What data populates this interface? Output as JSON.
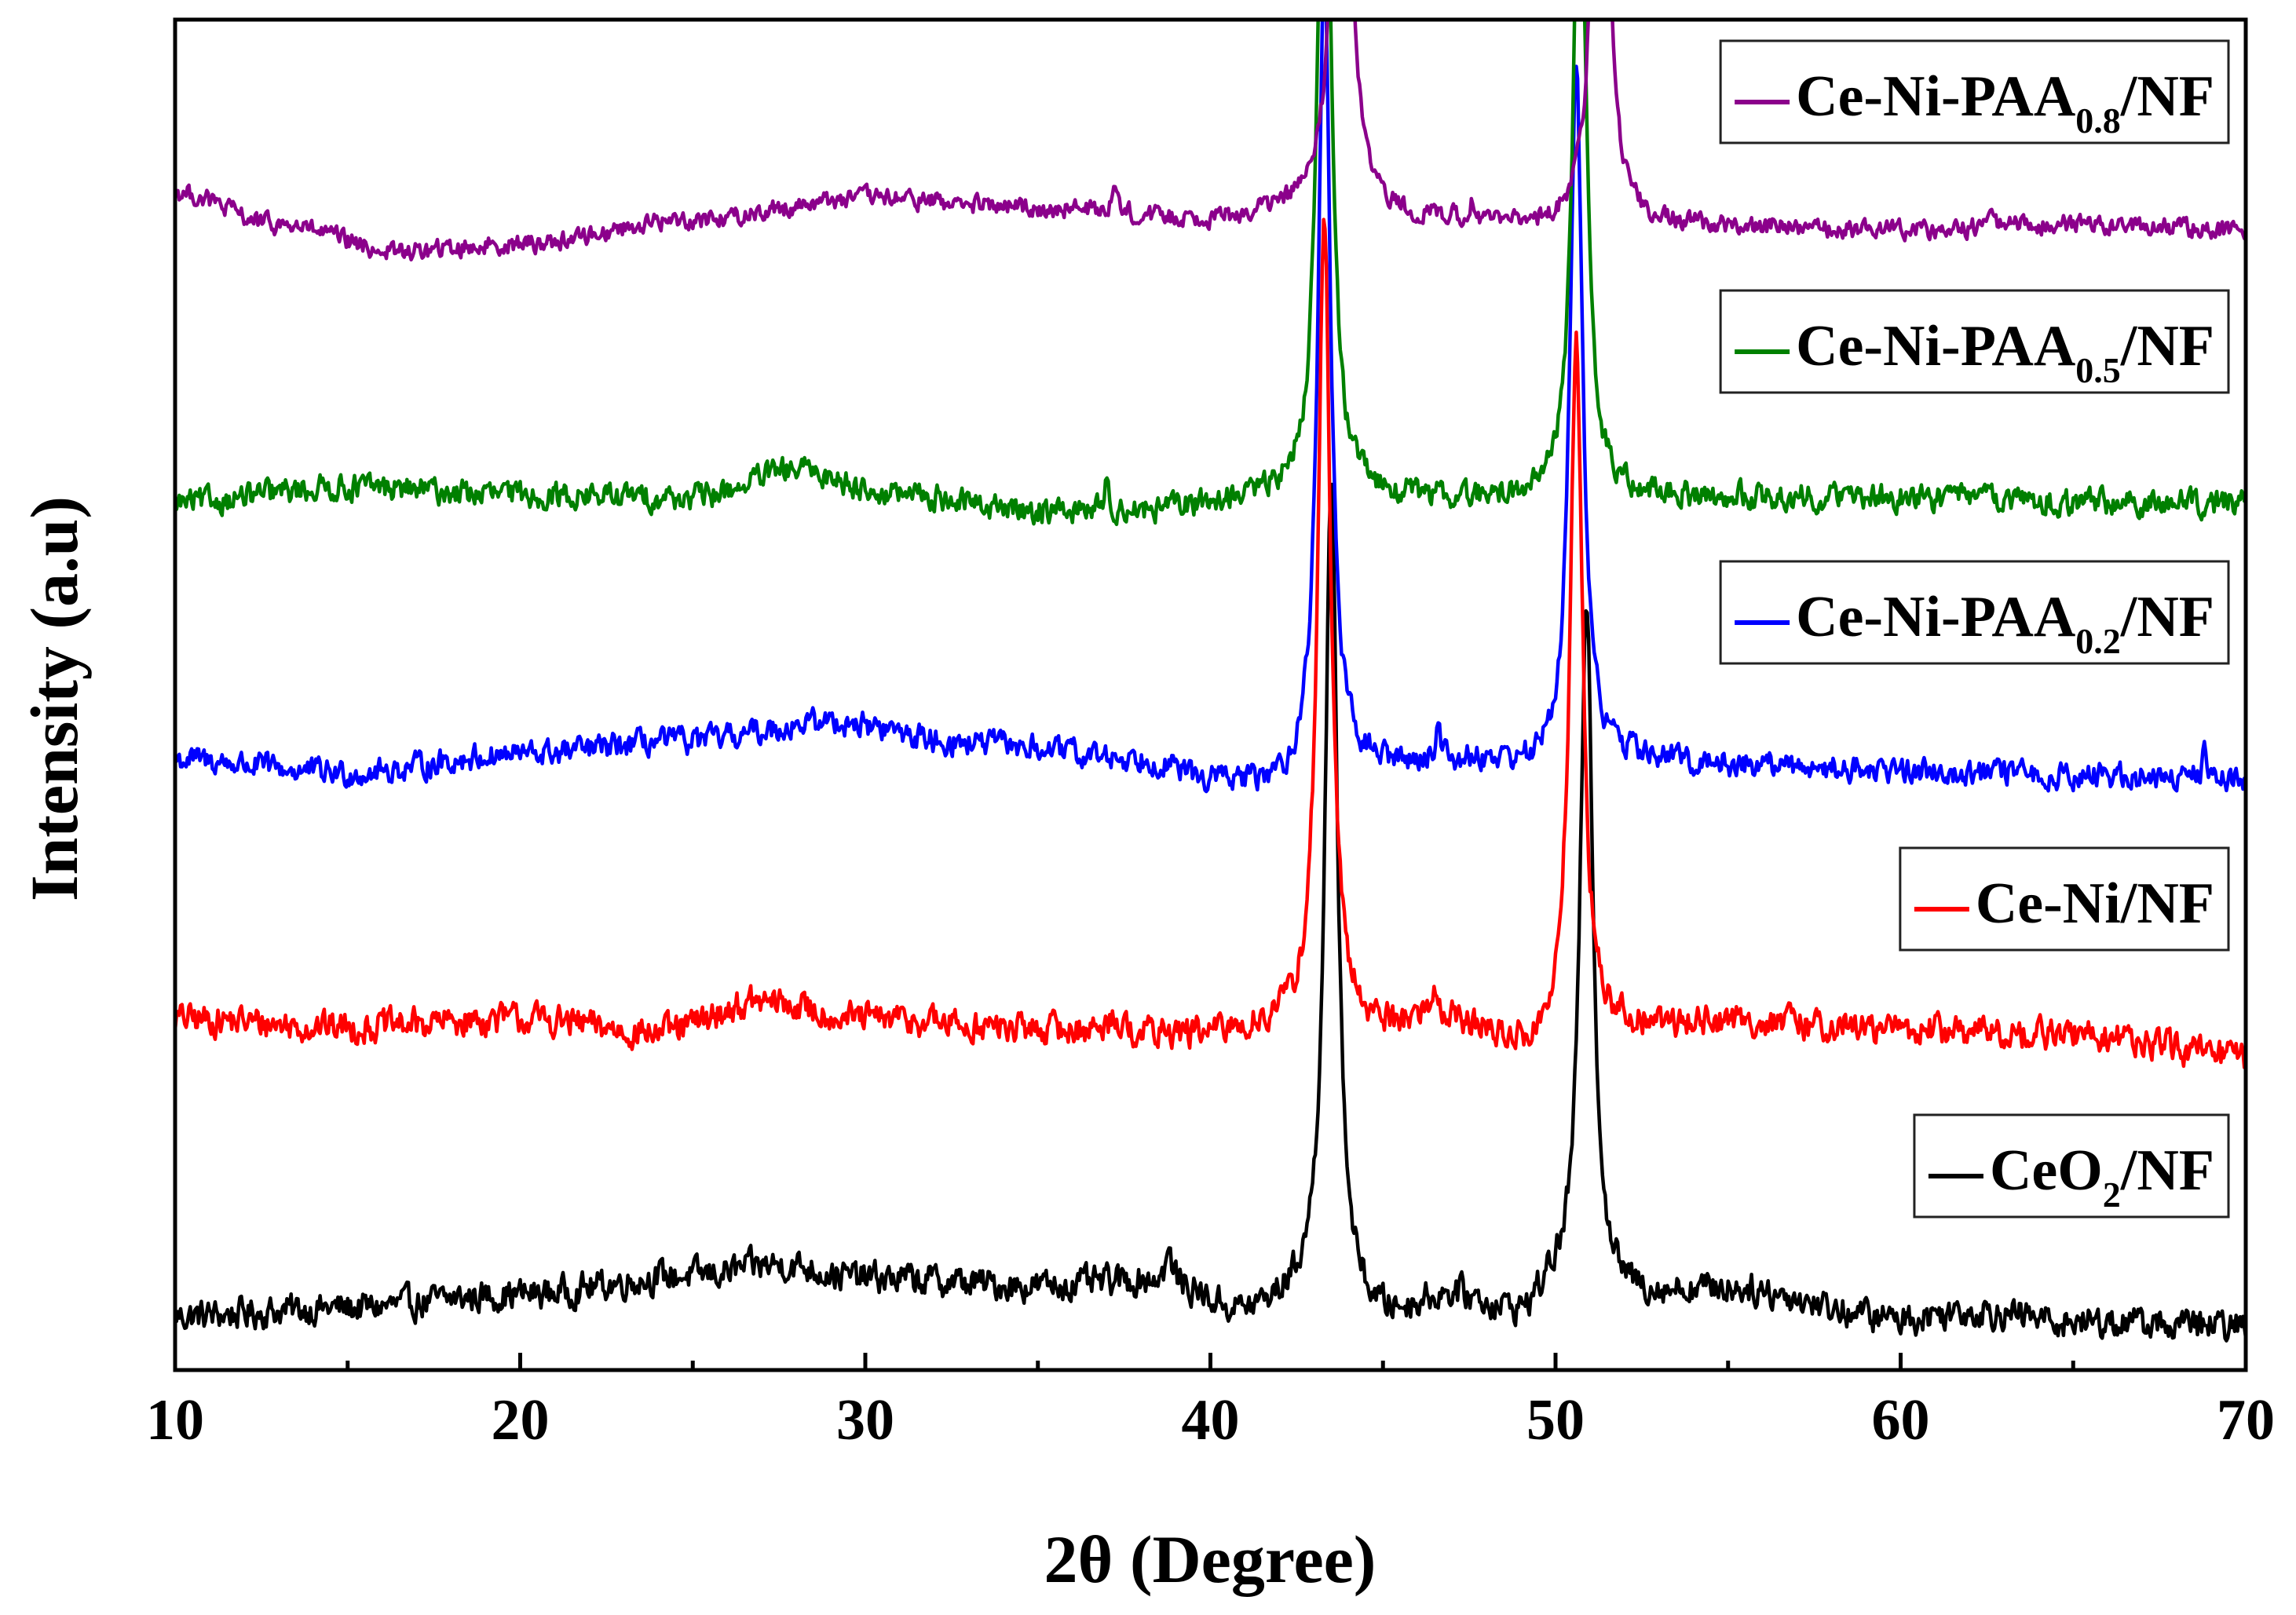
{
  "chart_data": {
    "type": "line",
    "title": "",
    "xlabel": "2θ (Degree)",
    "ylabel": "Intensity (a.u)",
    "xlim": [
      10,
      70
    ],
    "xticks": [
      10,
      20,
      30,
      40,
      50,
      60,
      70
    ],
    "yticks": [],
    "grid": false,
    "legend_placement": "right, one box per trace",
    "series": [
      {
        "name": "CeO2/NF",
        "legend_main": "CeO",
        "legend_sub": "2",
        "legend_tail": "/NF",
        "color": "#000000",
        "baseline_offset": 0.0,
        "noise": 0.9,
        "background": [
          [
            10,
            0.5
          ],
          [
            15,
            0.8
          ],
          [
            20,
            1.3
          ],
          [
            25,
            2.0
          ],
          [
            27.5,
            2.4
          ],
          [
            30,
            1.9
          ],
          [
            35,
            1.6
          ],
          [
            38.5,
            1.8
          ],
          [
            41,
            0.6
          ],
          [
            42.8,
            1.2
          ],
          [
            45,
            0.4
          ],
          [
            47,
            1.2
          ],
          [
            49,
            0.5
          ],
          [
            50,
            1.4
          ],
          [
            52,
            1.2
          ],
          [
            55,
            1.5
          ],
          [
            60,
            0.4
          ],
          [
            62,
            0.7
          ],
          [
            65,
            0.3
          ],
          [
            70,
            0.1
          ]
        ],
        "peaks": [
          {
            "x": 43.5,
            "height": 30,
            "width": 0.22
          },
          {
            "x": 50.9,
            "height": 26,
            "width": 0.22
          },
          {
            "x": 38.8,
            "height": 0.9,
            "width": 0.12
          }
        ]
      },
      {
        "name": "Ce-Ni/NF",
        "legend_main": "Ce-Ni/NF",
        "legend_sub": "",
        "legend_tail": "",
        "color": "#ff0000",
        "baseline_offset": 10.5,
        "noise": 0.9,
        "background": [
          [
            10,
            1.0
          ],
          [
            15,
            0.7
          ],
          [
            20,
            1.0
          ],
          [
            24,
            0.5
          ],
          [
            27,
            1.6
          ],
          [
            30,
            1.0
          ],
          [
            35,
            0.6
          ],
          [
            40,
            0.4
          ],
          [
            42,
            0.7
          ],
          [
            45,
            0.6
          ],
          [
            46.5,
            1.0
          ],
          [
            49.5,
            -0.2
          ],
          [
            52,
            0.6
          ],
          [
            55,
            0.9
          ],
          [
            60,
            0.6
          ],
          [
            65,
            0.4
          ],
          [
            70,
            -0.4
          ]
        ],
        "peaks": [
          {
            "x": 43.3,
            "height": 30,
            "width": 0.22
          },
          {
            "x": 50.6,
            "height": 26,
            "width": 0.22
          },
          {
            "x": 46.5,
            "height": 0.9,
            "width": 0.12
          },
          {
            "x": 37.2,
            "height": 0.8,
            "width": 0.12
          }
        ]
      },
      {
        "name": "Ce-Ni-PAA0.2/NF",
        "legend_main": "Ce-Ni-PAA",
        "legend_sub": "0.2",
        "legend_tail": "/NF",
        "color": "#0000ff",
        "baseline_offset": 20.5,
        "noise": 0.75,
        "background": [
          [
            10,
            0.6
          ],
          [
            15,
            0.1
          ],
          [
            20,
            0.8
          ],
          [
            25,
            1.3
          ],
          [
            29,
            2.0
          ],
          [
            33,
            1.2
          ],
          [
            38,
            0.6
          ],
          [
            40,
            -0.2
          ],
          [
            42,
            -0.5
          ],
          [
            45,
            0.3
          ],
          [
            48,
            0.5
          ],
          [
            49.5,
            0.2
          ],
          [
            52,
            0.6
          ],
          [
            55,
            0.4
          ],
          [
            60,
            0.2
          ],
          [
            65,
            0.0
          ],
          [
            70,
            -0.1
          ]
        ],
        "peaks": [
          {
            "x": 43.3,
            "height": 30,
            "width": 0.22
          },
          {
            "x": 50.6,
            "height": 26,
            "width": 0.22
          },
          {
            "x": 46.6,
            "height": 1.3,
            "width": 0.1
          },
          {
            "x": 68.8,
            "height": 0.9,
            "width": 0.1
          }
        ]
      },
      {
        "name": "Ce-Ni-PAA0.5/NF",
        "legend_main": "Ce-Ni-PAA",
        "legend_sub": "0.5",
        "legend_tail": "/NF",
        "color": "#008000",
        "baseline_offset": 30.5,
        "noise": 0.75,
        "background": [
          [
            10,
            0.1
          ],
          [
            15,
            0.7
          ],
          [
            20,
            0.4
          ],
          [
            25,
            0.3
          ],
          [
            28,
            1.3
          ],
          [
            31,
            0.4
          ],
          [
            35,
            -0.2
          ],
          [
            38,
            -0.2
          ],
          [
            42,
            0.3
          ],
          [
            45,
            0.3
          ],
          [
            48,
            0.2
          ],
          [
            50,
            0.3
          ],
          [
            53,
            0.3
          ],
          [
            60,
            0.3
          ],
          [
            65,
            0.1
          ],
          [
            70,
            0.1
          ]
        ],
        "peaks": [
          {
            "x": 43.3,
            "height": 30,
            "width": 0.22
          },
          {
            "x": 50.7,
            "height": 26,
            "width": 0.22
          },
          {
            "x": 37.0,
            "height": 0.9,
            "width": 0.1
          },
          {
            "x": 62.6,
            "height": 0.7,
            "width": 0.1
          }
        ]
      },
      {
        "name": "Ce-Ni-PAA0.8/NF",
        "legend_main": "Ce-Ni-PAA",
        "legend_sub": "0.8",
        "legend_tail": "/NF",
        "color": "#8b008b",
        "baseline_offset": 40.5,
        "noise": 0.55,
        "background": [
          [
            10,
            1.6
          ],
          [
            13,
            0.4
          ],
          [
            16.5,
            -0.6
          ],
          [
            20,
            -0.3
          ],
          [
            25,
            0.6
          ],
          [
            30,
            1.4
          ],
          [
            35,
            1.0
          ],
          [
            40,
            0.6
          ],
          [
            43,
            1.0
          ],
          [
            46,
            0.6
          ],
          [
            49,
            0.3
          ],
          [
            52,
            0.4
          ],
          [
            55,
            0.3
          ],
          [
            60,
            0.2
          ],
          [
            65,
            0.4
          ],
          [
            70,
            0.2
          ]
        ],
        "peaks": [
          {
            "x": 43.8,
            "height": 30,
            "width": 0.22
          },
          {
            "x": 51.3,
            "height": 26,
            "width": 0.22
          },
          {
            "x": 37.2,
            "height": 1.0,
            "width": 0.1
          },
          {
            "x": 47.6,
            "height": 0.8,
            "width": 0.1
          },
          {
            "x": 62.6,
            "height": 0.9,
            "width": 0.1
          }
        ]
      }
    ]
  }
}
